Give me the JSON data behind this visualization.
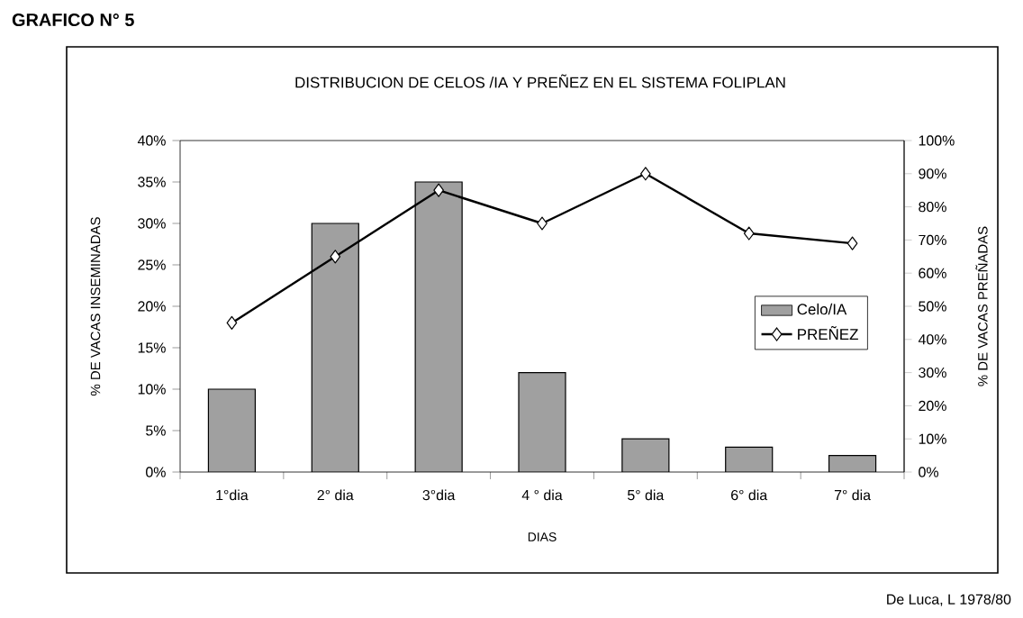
{
  "chart_data": {
    "type": "bar",
    "title": "GRAFICO N° 5",
    "subtitle": "DISTRIBUCION DE CELOS /IA  Y PREÑEZ EN EL SISTEMA FOLIPLAN",
    "xlabel": "DIAS",
    "ylabel": "% DE VACAS INSEMINADAS",
    "y2label": "% DE VACAS PREÑADAS",
    "categories": [
      "1°dia",
      "2° dia",
      "3°dia",
      "4 ° dia",
      "5° dia",
      "6° dia",
      "7° dia"
    ],
    "series": [
      {
        "name": "Celo/IA",
        "color": "#a0a0a0",
        "values": [
          10,
          30,
          35,
          12,
          4,
          3,
          2
        ]
      },
      {
        "name": "PREÑEZ",
        "type": "line",
        "axis": "y2",
        "color": "#000000",
        "marker": "diamond",
        "values": [
          45,
          65,
          85,
          75,
          90,
          72,
          69
        ]
      }
    ],
    "ylim": [
      0,
      40
    ],
    "yticks": [
      {
        "value": 0,
        "label": "0%"
      },
      {
        "value": 5,
        "label": "5%"
      },
      {
        "value": 10,
        "label": "10%"
      },
      {
        "value": 15,
        "label": "15%"
      },
      {
        "value": 20,
        "label": "20%"
      },
      {
        "value": 25,
        "label": "25%"
      },
      {
        "value": 30,
        "label": "30%"
      },
      {
        "value": 35,
        "label": "35%"
      },
      {
        "value": 40,
        "label": "40%"
      }
    ],
    "y2lim": [
      0,
      100
    ],
    "y2ticks": [
      {
        "value": 0,
        "label": "0%"
      },
      {
        "value": 10,
        "label": "10%"
      },
      {
        "value": 20,
        "label": "20%"
      },
      {
        "value": 30,
        "label": "30%"
      },
      {
        "value": 40,
        "label": "40%"
      },
      {
        "value": 50,
        "label": "50%"
      },
      {
        "value": 60,
        "label": "60%"
      },
      {
        "value": 70,
        "label": "70%"
      },
      {
        "value": 80,
        "label": "80%"
      },
      {
        "value": 90,
        "label": "90%"
      },
      {
        "value": 100,
        "label": "100%"
      }
    ],
    "legend": "right",
    "grid": false,
    "annotations": [
      "De Luca, L 1978/80"
    ]
  }
}
